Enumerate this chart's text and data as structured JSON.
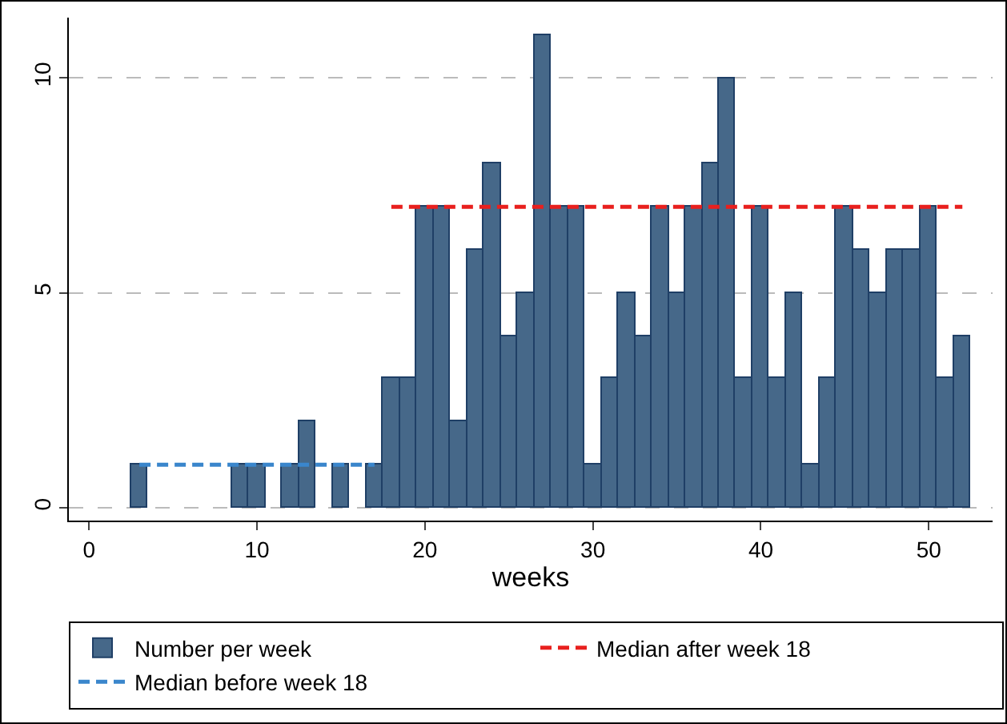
{
  "chart_data": {
    "type": "bar",
    "xlabel": "weeks",
    "series": [
      {
        "name": "Number per week",
        "color": "#466889",
        "x": [
          3,
          9,
          10,
          12,
          13,
          15,
          17,
          18,
          19,
          20,
          21,
          22,
          23,
          24,
          25,
          26,
          27,
          28,
          29,
          30,
          31,
          32,
          33,
          34,
          35,
          36,
          37,
          38,
          39,
          40,
          41,
          42,
          43,
          44,
          45,
          46,
          47,
          48,
          49,
          50,
          51,
          52
        ],
        "values": [
          1,
          1,
          1,
          1,
          2,
          1,
          1,
          3,
          3,
          7,
          7,
          2,
          6,
          8,
          4,
          5,
          11,
          7,
          7,
          1,
          3,
          5,
          4,
          7,
          5,
          7,
          8,
          10,
          3,
          7,
          3,
          5,
          1,
          3,
          7,
          6,
          5,
          6,
          6,
          7,
          3,
          4
        ]
      },
      {
        "name": "Median after week 18",
        "type": "line",
        "color": "#e8201e",
        "line_style": "dashed",
        "x": [
          18,
          52
        ],
        "values": [
          7,
          7
        ]
      },
      {
        "name": "Median before week 18",
        "type": "line",
        "color": "#3a86cc",
        "line_style": "dashed",
        "x": [
          3,
          17
        ],
        "values": [
          1,
          1
        ]
      }
    ],
    "xlim": [
      -1.2,
      53.8
    ],
    "xticks": [
      0,
      10,
      20,
      30,
      40,
      50
    ],
    "ylim": [
      -0.3,
      11.4
    ],
    "yticks": [
      0,
      5,
      10
    ],
    "grid": "y",
    "legend": "bottom",
    "marker": "none"
  }
}
